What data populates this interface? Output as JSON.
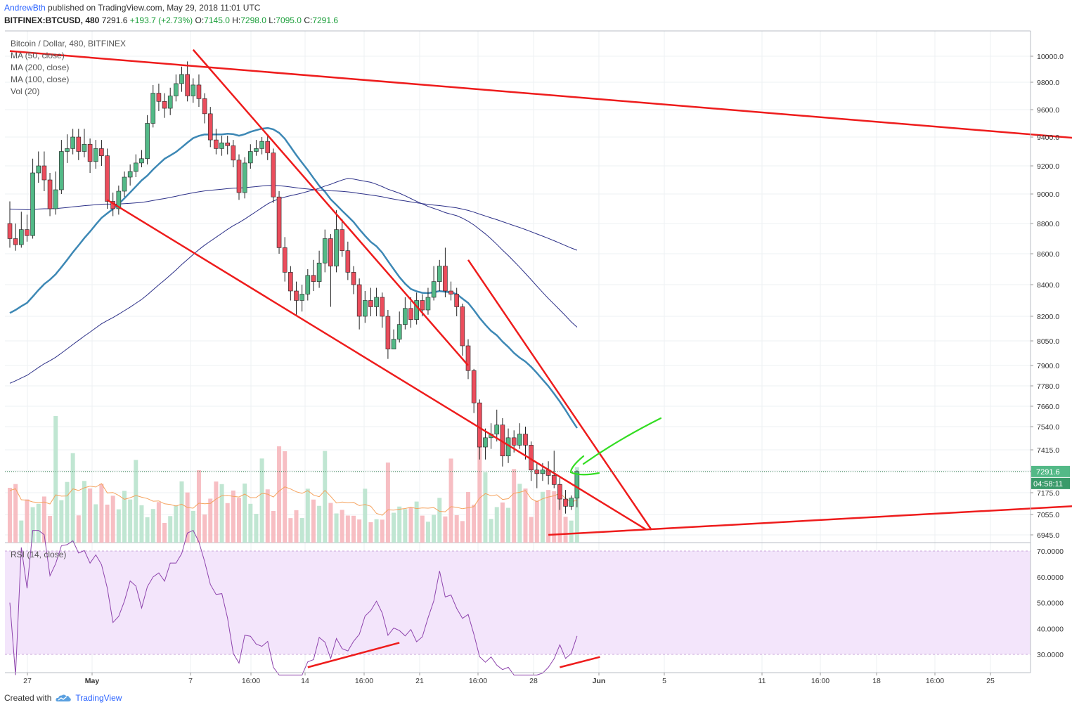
{
  "header": {
    "author": "AndrewBth",
    "published": "published on TradingView.com, May 29, 2018 11:01 UTC",
    "symbol": "BITFINEX:BTCUSD, 480",
    "last": "7291.6",
    "change": "+193.7 (+2.73%)",
    "o_label": "O:",
    "o": "7145.0",
    "h_label": "H:",
    "h": "7298.0",
    "l_label": "L:",
    "l": "7095.0",
    "c_label": "C:",
    "c": "7291.6"
  },
  "legend": {
    "title": "Bitcoin / Dollar, 480, BITFINEX",
    "ma50": "MA (50, close)",
    "ma200": "MA (200, close)",
    "ma100": "MA (100, close)",
    "vol": "Vol (20)"
  },
  "rsi_label": "RSI (14, close)",
  "footer": {
    "created": "Created with",
    "brand": "TradingView"
  },
  "price_badge": "7291.6",
  "countdown_badge": "04:58:11",
  "colors": {
    "up": "#53b987",
    "down": "#eb4d5c",
    "trend": "#ee1c1c",
    "ma_blue": "#3d88b5",
    "ma_navy": "#2b2f87",
    "vol_ma": "#f5a25d",
    "rsi": "#8e44ad",
    "rsi_bg": "#f3e5fb",
    "annotation": "#33dd22",
    "badge_price": "#53b987",
    "badge_time": "#3a9a6a"
  },
  "chart_data": {
    "type": "candlestick",
    "y_ticks": [
      "10000.0",
      "9800.0",
      "9600.0",
      "9400.0",
      "9200.0",
      "9000.0",
      "8800.0",
      "8600.0",
      "8400.0",
      "8200.0",
      "8050.0",
      "7900.0",
      "7780.0",
      "7660.0",
      "7540.0",
      "7415.0",
      "7295.0",
      "7175.0",
      "7055.0",
      "6945.0"
    ],
    "rsi_ticks": [
      "70.0000",
      "60.0000",
      "50.0000",
      "40.0000",
      "30.0000"
    ],
    "x_ticks": [
      "27",
      "May",
      "7",
      "16:00",
      "14",
      "16:00",
      "21",
      "16:00",
      "28",
      "Jun",
      "5",
      "11",
      "16:00",
      "18",
      "16:00",
      "25"
    ],
    "rsi_band": [
      30,
      70
    ],
    "candles": [
      [
        8800,
        8700,
        8950,
        8640
      ],
      [
        8700,
        8660,
        8800,
        8620
      ],
      [
        8660,
        8760,
        8880,
        8640
      ],
      [
        8760,
        8720,
        8860,
        8680
      ],
      [
        8720,
        9150,
        9250,
        8700
      ],
      [
        9150,
        9200,
        9300,
        9080
      ],
      [
        9200,
        9100,
        9300,
        9020
      ],
      [
        9100,
        8900,
        9150,
        8850
      ],
      [
        8900,
        9030,
        9160,
        8860
      ],
      [
        9030,
        9300,
        9380,
        9000
      ],
      [
        9300,
        9320,
        9420,
        9220
      ],
      [
        9320,
        9400,
        9460,
        9280
      ],
      [
        9400,
        9300,
        9460,
        9240
      ],
      [
        9300,
        9350,
        9460,
        9260
      ],
      [
        9350,
        9230,
        9390,
        9150
      ],
      [
        9230,
        9320,
        9380,
        9180
      ],
      [
        9320,
        9270,
        9380,
        9200
      ],
      [
        9270,
        8950,
        9320,
        8900
      ],
      [
        8950,
        8900,
        9010,
        8850
      ],
      [
        8900,
        9020,
        9060,
        8860
      ],
      [
        9020,
        9120,
        9160,
        8980
      ],
      [
        9120,
        9160,
        9210,
        9060
      ],
      [
        9160,
        9220,
        9280,
        9120
      ],
      [
        9220,
        9250,
        9310,
        9190
      ],
      [
        9250,
        9500,
        9560,
        9210
      ],
      [
        9500,
        9720,
        9780,
        9470
      ],
      [
        9720,
        9660,
        9790,
        9590
      ],
      [
        9660,
        9610,
        9720,
        9540
      ],
      [
        9610,
        9700,
        9760,
        9560
      ],
      [
        9700,
        9790,
        9860,
        9660
      ],
      [
        9790,
        9860,
        9920,
        9730
      ],
      [
        9860,
        9700,
        9960,
        9660
      ],
      [
        9700,
        9780,
        9830,
        9650
      ],
      [
        9780,
        9680,
        9860,
        9620
      ],
      [
        9680,
        9570,
        9720,
        9500
      ],
      [
        9570,
        9380,
        9620,
        9330
      ],
      [
        9380,
        9320,
        9460,
        9280
      ],
      [
        9320,
        9360,
        9410,
        9270
      ],
      [
        9360,
        9340,
        9410,
        9280
      ],
      [
        9340,
        9240,
        9380,
        9190
      ],
      [
        9240,
        9010,
        9280,
        8960
      ],
      [
        9010,
        9220,
        9260,
        8970
      ],
      [
        9220,
        9300,
        9350,
        9180
      ],
      [
        9300,
        9320,
        9380,
        9270
      ],
      [
        9320,
        9370,
        9400,
        9280
      ],
      [
        9370,
        9290,
        9420,
        9240
      ],
      [
        9290,
        8980,
        9320,
        8940
      ],
      [
        8980,
        8640,
        9020,
        8600
      ],
      [
        8640,
        8480,
        8710,
        8420
      ],
      [
        8480,
        8360,
        8520,
        8300
      ],
      [
        8360,
        8300,
        8420,
        8200
      ],
      [
        8300,
        8340,
        8400,
        8230
      ],
      [
        8340,
        8460,
        8500,
        8300
      ],
      [
        8460,
        8420,
        8560,
        8360
      ],
      [
        8420,
        8540,
        8620,
        8380
      ],
      [
        8540,
        8700,
        8760,
        8480
      ],
      [
        8700,
        8520,
        8730,
        8260
      ],
      [
        8520,
        8760,
        8890,
        8480
      ],
      [
        8760,
        8620,
        8830,
        8580
      ],
      [
        8620,
        8480,
        8680,
        8430
      ],
      [
        8480,
        8400,
        8520,
        8340
      ],
      [
        8400,
        8200,
        8440,
        8120
      ],
      [
        8200,
        8300,
        8360,
        8160
      ],
      [
        8300,
        8260,
        8380,
        8200
      ],
      [
        8260,
        8320,
        8380,
        8200
      ],
      [
        8320,
        8200,
        8350,
        8130
      ],
      [
        8200,
        8000,
        8240,
        7940
      ],
      [
        8000,
        8060,
        8120,
        8000
      ],
      [
        8060,
        8150,
        8230,
        8040
      ],
      [
        8150,
        8250,
        8320,
        8120
      ],
      [
        8250,
        8180,
        8320,
        8130
      ],
      [
        8180,
        8300,
        8350,
        8150
      ],
      [
        8300,
        8240,
        8340,
        8200
      ],
      [
        8240,
        8320,
        8380,
        8210
      ],
      [
        8320,
        8420,
        8520,
        8300
      ],
      [
        8420,
        8520,
        8560,
        8360
      ],
      [
        8520,
        8360,
        8640,
        8320
      ],
      [
        8360,
        8340,
        8420,
        8300
      ],
      [
        8340,
        8260,
        8380,
        8200
      ],
      [
        8260,
        8020,
        8280,
        7960
      ],
      [
        8020,
        7870,
        8060,
        7820
      ],
      [
        7870,
        7680,
        7880,
        7620
      ],
      [
        7680,
        7430,
        7700,
        7360
      ],
      [
        7430,
        7480,
        7530,
        7360
      ],
      [
        7480,
        7500,
        7560,
        7420
      ],
      [
        7500,
        7550,
        7640,
        7460
      ],
      [
        7550,
        7380,
        7590,
        7320
      ],
      [
        7380,
        7480,
        7530,
        7340
      ],
      [
        7480,
        7440,
        7520,
        7400
      ],
      [
        7440,
        7500,
        7560,
        7420
      ],
      [
        7500,
        7440,
        7540,
        7360
      ],
      [
        7440,
        7300,
        7460,
        7240
      ],
      [
        7300,
        7280,
        7340,
        7200
      ],
      [
        7280,
        7300,
        7340,
        7240
      ],
      [
        7300,
        7270,
        7350,
        7220
      ],
      [
        7270,
        7220,
        7410,
        7200
      ],
      [
        7220,
        7140,
        7260,
        7080
      ],
      [
        7140,
        7100,
        7190,
        7060
      ],
      [
        7100,
        7145,
        7160,
        7080
      ],
      [
        7145,
        7292,
        7298,
        7095
      ]
    ],
    "trendlines": [
      {
        "from": [
          0,
          10040
        ],
        "to": [
          240,
          9218
        ]
      },
      {
        "from": [
          17,
          8960
        ],
        "to": [
          111,
          6975
        ]
      },
      {
        "from": [
          32,
          10050
        ],
        "to": [
          80,
          7900
        ]
      },
      {
        "from": [
          80,
          8560
        ],
        "to": [
          112,
          6972
        ]
      },
      {
        "from": [
          94,
          6945
        ],
        "to": [
          240,
          7195
        ]
      }
    ],
    "rsi_lines": [
      {
        "from": [
          52,
          25
        ],
        "to": [
          68,
          34.5
        ]
      },
      {
        "from": [
          96,
          25
        ],
        "to": [
          103,
          29
        ]
      }
    ]
  }
}
